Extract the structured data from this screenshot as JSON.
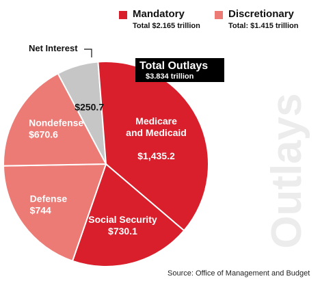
{
  "colors": {
    "mandatory": "#d81f2b",
    "discretionary": "#ec7b76",
    "net_interest": "#c6c6c6",
    "watermark": "#ececec"
  },
  "legend": {
    "mandatory": {
      "label": "Mandatory",
      "total": "Total $2.165 trillion"
    },
    "discretionary": {
      "label": "Discretionary",
      "total": "Total: $1.415 trillion"
    }
  },
  "total_outlays": {
    "title": "Total Outlays",
    "value": "$3.834 trillion"
  },
  "watermark_text": "Outlays",
  "source": "Source: Office of Management and Budget",
  "chart_data": {
    "type": "pie",
    "slices": [
      {
        "label": "Net Interest",
        "value": 250.7,
        "value_label": "$250.7",
        "group": "net_interest"
      },
      {
        "label": "Medicare and Medicaid",
        "value": 1435.2,
        "value_label": "$1,435.2",
        "group": "mandatory"
      },
      {
        "label": "Social Security",
        "value": 730.1,
        "value_label": "$730.1",
        "group": "mandatory"
      },
      {
        "label": "Defense",
        "value": 744,
        "value_label": "$744",
        "group": "discretionary"
      },
      {
        "label": "Nondefense",
        "value": 670.6,
        "value_label": "$670.6",
        "group": "discretionary"
      }
    ],
    "total": 3834,
    "title": "Total Outlays",
    "subtitle": "$3.834 trillion",
    "legend": [
      "Mandatory",
      "Discretionary"
    ],
    "source": "Source: Office of Management and Budget"
  }
}
